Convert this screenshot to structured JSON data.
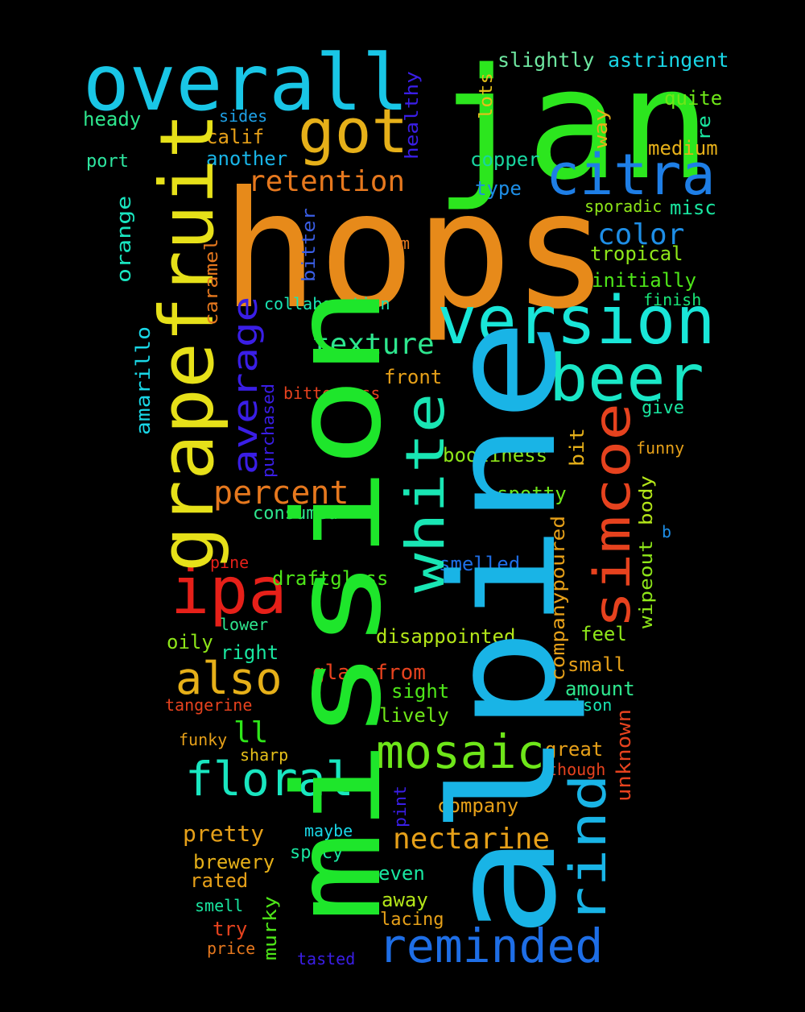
{
  "words": [
    {
      "text": "hops",
      "color": "#e78a1a"
    },
    {
      "text": "alpine",
      "color": "#19b4e6"
    },
    {
      "text": "mission",
      "color": "#1ee62b"
    },
    {
      "text": "jan",
      "color": "#2ce61e"
    },
    {
      "text": "overall",
      "color": "#19c6e6"
    },
    {
      "text": "grapefruit",
      "color": "#e6e019"
    },
    {
      "text": "version",
      "color": "#19e6d8"
    },
    {
      "text": "got",
      "color": "#e6b019"
    },
    {
      "text": "citra",
      "color": "#1e7ee6"
    },
    {
      "text": "beer",
      "color": "#19e6c6"
    },
    {
      "text": "ipa",
      "color": "#e62019"
    },
    {
      "text": "simcoe",
      "color": "#e6421e"
    },
    {
      "text": "white",
      "color": "#19e6b4"
    },
    {
      "text": "also",
      "color": "#e6b019"
    },
    {
      "text": "mosaic",
      "color": "#6ee619"
    },
    {
      "text": "floral",
      "color": "#19e6c0"
    },
    {
      "text": "reminded",
      "color": "#1e6ee6"
    },
    {
      "text": "rind",
      "color": "#19b4e6"
    },
    {
      "text": "average",
      "color": "#3a1ee6"
    },
    {
      "text": "percent",
      "color": "#e6781e"
    },
    {
      "text": "retention",
      "color": "#e6781e"
    },
    {
      "text": "texture",
      "color": "#2ee68e"
    },
    {
      "text": "color",
      "color": "#1e8ee6"
    },
    {
      "text": "nectarine",
      "color": "#e6a019"
    },
    {
      "text": "slightly",
      "color": "#6ee6a0"
    },
    {
      "text": "astringent",
      "color": "#19d6e6"
    },
    {
      "text": "quite",
      "color": "#6ee619"
    },
    {
      "text": "heady",
      "color": "#2ee68e"
    },
    {
      "text": "sides",
      "color": "#1ea0e6"
    },
    {
      "text": "calif",
      "color": "#e6a019"
    },
    {
      "text": "another",
      "color": "#19b4e6"
    },
    {
      "text": "port",
      "color": "#2ee6a0"
    },
    {
      "text": "orange",
      "color": "#19e6c0"
    },
    {
      "text": "copper",
      "color": "#19d6a0"
    },
    {
      "text": "medium",
      "color": "#e6b019"
    },
    {
      "text": "type",
      "color": "#1e8ee6"
    },
    {
      "text": "sporadic",
      "color": "#8ee619"
    },
    {
      "text": "misc",
      "color": "#19e6a0"
    },
    {
      "text": "tropical",
      "color": "#8ee619"
    },
    {
      "text": "initially",
      "color": "#4ee619"
    },
    {
      "text": "finish",
      "color": "#19e678"
    },
    {
      "text": "collaboration",
      "color": "#19e6b4"
    },
    {
      "text": "front",
      "color": "#e6a019"
    },
    {
      "text": "bitterness",
      "color": "#e6421e"
    },
    {
      "text": "give",
      "color": "#19e6a0"
    },
    {
      "text": "booziness",
      "color": "#8ee619"
    },
    {
      "text": "funny",
      "color": "#e6a019"
    },
    {
      "text": "spotty",
      "color": "#6ee619"
    },
    {
      "text": "consumed",
      "color": "#2ee68e"
    },
    {
      "text": "b",
      "color": "#1e8ee6"
    },
    {
      "text": "smelled",
      "color": "#1e6ee6"
    },
    {
      "text": "pine",
      "color": "#e62019"
    },
    {
      "text": "draftglass",
      "color": "#4ee619"
    },
    {
      "text": "lower",
      "color": "#2ee68e"
    },
    {
      "text": "oily",
      "color": "#8ee619"
    },
    {
      "text": "right",
      "color": "#19e6a0"
    },
    {
      "text": "disappointed",
      "color": "#b4e619"
    },
    {
      "text": "feel",
      "color": "#8ee619"
    },
    {
      "text": "glassfrom",
      "color": "#e6421e"
    },
    {
      "text": "small",
      "color": "#e6a019"
    },
    {
      "text": "sight",
      "color": "#4ee619"
    },
    {
      "text": "amount",
      "color": "#2ee68e"
    },
    {
      "text": "tangerine",
      "color": "#e6421e"
    },
    {
      "text": "lively",
      "color": "#6ee619"
    },
    {
      "text": "nelson",
      "color": "#19e6b4"
    },
    {
      "text": "ll",
      "color": "#2ee619"
    },
    {
      "text": "funky",
      "color": "#e6a019"
    },
    {
      "text": "sharp",
      "color": "#e6c019"
    },
    {
      "text": "great",
      "color": "#e6a019"
    },
    {
      "text": "though",
      "color": "#e6421e"
    },
    {
      "text": "company",
      "color": "#e6a019"
    },
    {
      "text": "pretty",
      "color": "#e6a019"
    },
    {
      "text": "maybe",
      "color": "#19d6e6"
    },
    {
      "text": "brewery",
      "color": "#e6b019"
    },
    {
      "text": "spicy",
      "color": "#19e6a0"
    },
    {
      "text": "rated",
      "color": "#e6a019"
    },
    {
      "text": "even",
      "color": "#19e6a0"
    },
    {
      "text": "away",
      "color": "#b4e619"
    },
    {
      "text": "smell",
      "color": "#19e6a0"
    },
    {
      "text": "lacing",
      "color": "#e6a019"
    },
    {
      "text": "try",
      "color": "#e6421e"
    },
    {
      "text": "price",
      "color": "#e6781e"
    },
    {
      "text": "tasted",
      "color": "#3a1ee6"
    },
    {
      "text": "healthy",
      "color": "#3a1ee6"
    },
    {
      "text": "lots",
      "color": "#e6c019"
    },
    {
      "text": "way",
      "color": "#e6b019"
    },
    {
      "text": "re",
      "color": "#19e6a0"
    },
    {
      "text": "m",
      "color": "#e6781e"
    },
    {
      "text": "bitter",
      "color": "#3a5ee6"
    },
    {
      "text": "caramel",
      "color": "#e6781e"
    },
    {
      "text": "amarillo",
      "color": "#19d6e6"
    },
    {
      "text": "purchased",
      "color": "#3a1ee6"
    },
    {
      "text": "bit",
      "color": "#e6b019"
    },
    {
      "text": "body",
      "color": "#b4e619"
    },
    {
      "text": "wipeout",
      "color": "#8ee619"
    },
    {
      "text": "companypoured",
      "color": "#e6a019"
    },
    {
      "text": "unknown",
      "color": "#e6421e"
    },
    {
      "text": "pint",
      "color": "#3a1ee6"
    },
    {
      "text": "murky",
      "color": "#4ee619"
    }
  ]
}
